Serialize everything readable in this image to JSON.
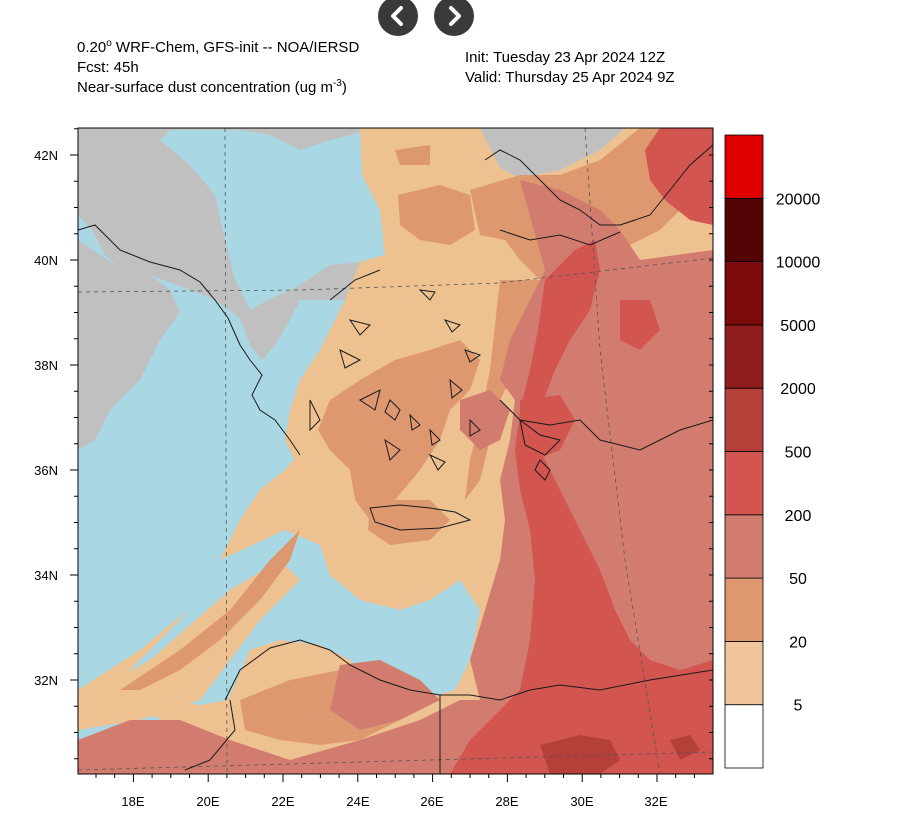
{
  "navigation": {
    "prev_icon": "chevron-left-icon",
    "next_icon": "chevron-right-icon"
  },
  "header": {
    "model_line_a": "0.20",
    "model_line_sup": "o",
    "model_line_b": " WRF-Chem, GFS-init -- NOA/IERSD",
    "forecast": "Fcst: 45h",
    "variable_a": "Near-surface dust concentration (ug m",
    "variable_sup": "-3",
    "variable_b": ")",
    "init": "Init: Tuesday 23 Apr 2024  12Z",
    "valid": "Valid: Thursday 25 Apr 2024  9Z"
  },
  "map": {
    "lat_labels": [
      "42N",
      "40N",
      "38N",
      "36N",
      "34N",
      "32N"
    ],
    "lon_labels": [
      "18E",
      "20E",
      "22E",
      "24E",
      "26E",
      "28E",
      "30E",
      "32E"
    ],
    "colors": {
      "sea": "#a9d7e3",
      "land_no_data": "#c0c0c0",
      "c5": "#eec191",
      "c20": "#de9870",
      "c50": "#d27c6f",
      "c200": "#d25550"
    }
  },
  "legend": {
    "labels": [
      "5",
      "20",
      "50",
      "200",
      "500",
      "2000",
      "5000",
      "10000",
      "20000"
    ],
    "colors": [
      "#ffffff",
      "#f1c59a",
      "#de9870",
      "#d27c6f",
      "#d25550",
      "#b5403a",
      "#8e1e1e",
      "#7c0b0b",
      "#540404",
      "#e10000"
    ]
  }
}
